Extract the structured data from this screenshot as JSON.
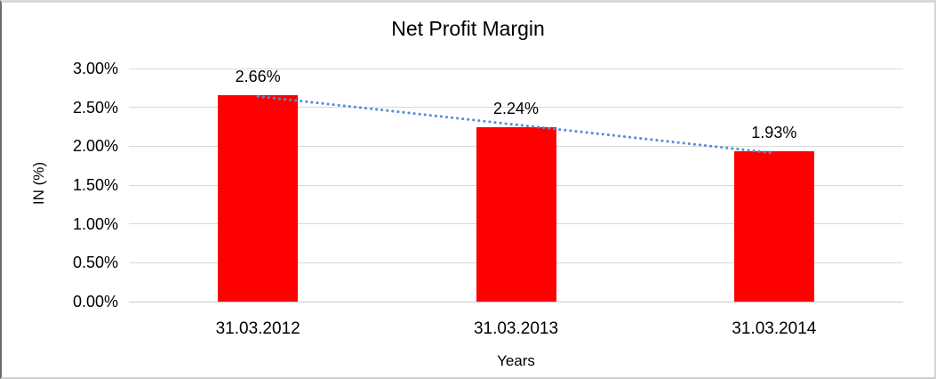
{
  "chart_data": {
    "type": "bar",
    "title": "Net Profit Margin",
    "xlabel": "Years",
    "ylabel": "IN (%)",
    "categories": [
      "31.03.2012",
      "31.03.2013",
      "31.03.2014"
    ],
    "values": [
      2.66,
      2.24,
      1.93
    ],
    "value_labels": [
      "2.66%",
      "2.24%",
      "1.93%"
    ],
    "ylim": [
      0,
      3
    ],
    "yticks": [
      {
        "value": 0.0,
        "label": "0.00%"
      },
      {
        "value": 0.5,
        "label": "0.50%"
      },
      {
        "value": 1.0,
        "label": "1.00%"
      },
      {
        "value": 1.5,
        "label": "1.50%"
      },
      {
        "value": 2.0,
        "label": "2.00%"
      },
      {
        "value": 2.5,
        "label": "2.50%"
      },
      {
        "value": 3.0,
        "label": "3.00%"
      }
    ],
    "bar_color": "#FF0000",
    "gridline_color": "#D9D9D9",
    "axis_line_color": "#C9C9C9",
    "trendline": {
      "type": "linear",
      "style": "dotted",
      "color": "#538DD5"
    },
    "legend": "none",
    "grid": "horizontal"
  }
}
